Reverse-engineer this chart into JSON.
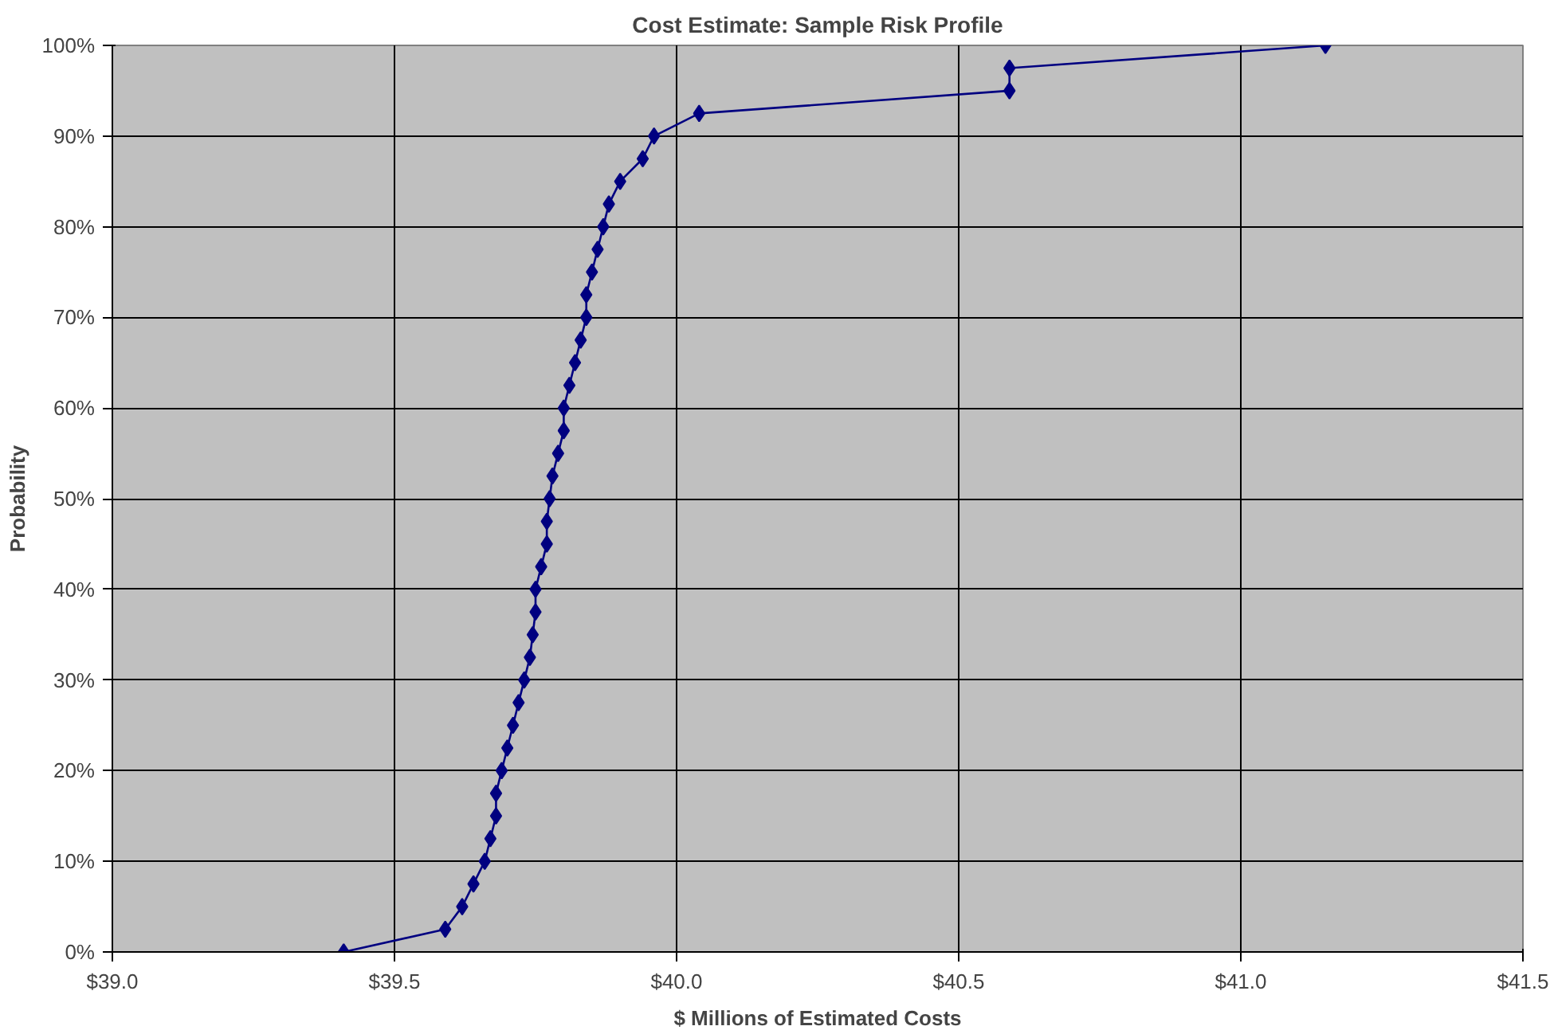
{
  "chart_data": {
    "type": "line",
    "title": "Cost Estimate: Sample Risk Profile",
    "xlabel": "$ Millions of Estimated Costs",
    "ylabel": "Probability",
    "x": [
      39.41,
      39.59,
      39.62,
      39.64,
      39.66,
      39.67,
      39.68,
      39.68,
      39.69,
      39.7,
      39.71,
      39.72,
      39.73,
      39.74,
      39.745,
      39.75,
      39.75,
      39.76,
      39.77,
      39.77,
      39.775,
      39.78,
      39.79,
      39.8,
      39.8,
      39.81,
      39.82,
      39.83,
      39.84,
      39.84,
      39.85,
      39.86,
      39.87,
      39.88,
      39.9,
      39.94,
      39.96,
      40.04,
      40.59,
      40.59,
      41.15
    ],
    "series": [
      {
        "color": "#000080",
        "values": [
          0,
          2.5,
          5,
          7.5,
          10,
          12.5,
          15,
          17.5,
          20,
          22.5,
          25,
          27.5,
          30,
          32.5,
          35,
          37.5,
          40,
          42.5,
          45,
          47.5,
          50,
          52.5,
          55,
          57.5,
          60,
          62.5,
          65,
          67.5,
          70,
          72.5,
          75,
          77.5,
          80,
          82.5,
          85,
          87.5,
          90,
          92.5,
          95,
          97.5,
          100
        ]
      }
    ],
    "xlim": [
      39.0,
      41.5
    ],
    "xticks": [
      {
        "value": 39.0,
        "label": "$39.0"
      },
      {
        "value": 39.5,
        "label": "$39.5"
      },
      {
        "value": 40.0,
        "label": "$40.0"
      },
      {
        "value": 40.5,
        "label": "$40.5"
      },
      {
        "value": 41.0,
        "label": "$41.0"
      },
      {
        "value": 41.5,
        "label": "$41.5"
      }
    ],
    "ylim": [
      0,
      100
    ],
    "yticks": [
      {
        "value": 0,
        "label": "0%"
      },
      {
        "value": 10,
        "label": "10%"
      },
      {
        "value": 20,
        "label": "20%"
      },
      {
        "value": 30,
        "label": "30%"
      },
      {
        "value": 40,
        "label": "40%"
      },
      {
        "value": 50,
        "label": "50%"
      },
      {
        "value": 60,
        "label": "60%"
      },
      {
        "value": 70,
        "label": "70%"
      },
      {
        "value": 80,
        "label": "80%"
      },
      {
        "value": 90,
        "label": "90%"
      },
      {
        "value": 100,
        "label": "100%"
      }
    ],
    "grid": true,
    "marker": "diamond",
    "line_style": "solid"
  }
}
